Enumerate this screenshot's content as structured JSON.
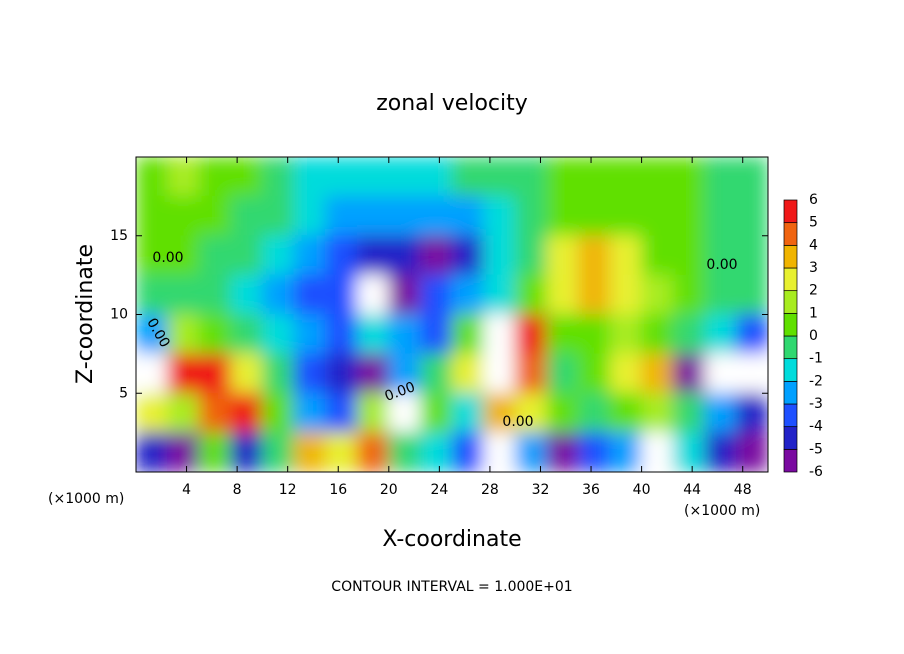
{
  "chart_data": {
    "type": "contour",
    "title": "zonal velocity",
    "x_label": "X-coordinate",
    "y_label": "Z-coordinate",
    "x_unit": "(×1000 m)",
    "y_unit": "(×1000 m)",
    "footer": "CONTOUR INTERVAL = 1.000E+01",
    "xlim": [
      0,
      50
    ],
    "ylim": [
      0,
      20
    ],
    "xticks": [
      4,
      8,
      12,
      16,
      20,
      24,
      28,
      32,
      36,
      40,
      44,
      48
    ],
    "yticks": [
      5,
      10,
      15
    ],
    "x": [
      1.25,
      3.75,
      6.25,
      8.75,
      11.25,
      13.75,
      16.25,
      18.75,
      21.25,
      23.75,
      26.25,
      28.75,
      31.25,
      33.75,
      36.25,
      38.75,
      41.25,
      43.75,
      46.25,
      48.75
    ],
    "y": [
      18.75,
      16.25,
      13.75,
      11.25,
      8.75,
      6.25,
      3.75,
      1.25
    ],
    "z": [
      [
        1,
        1.5,
        1,
        0.5,
        0,
        -1,
        -1.5,
        -1,
        -1.5,
        -1,
        -0.5,
        -0.5,
        0,
        0.5,
        0.5,
        0.5,
        0.5,
        0.5,
        0,
        0
      ],
      [
        1,
        1,
        0.5,
        0,
        -0.5,
        -1,
        -2,
        -2,
        -2.5,
        -2.5,
        -2,
        -1,
        0,
        0.5,
        1,
        0.5,
        0.5,
        0.5,
        0,
        0
      ],
      [
        0.5,
        0.5,
        0,
        0,
        -1,
        -2,
        -3,
        -4,
        -4.5,
        -5,
        -4,
        -1,
        0,
        3,
        4,
        3,
        1,
        0.5,
        0,
        0
      ],
      [
        0,
        0,
        0,
        -1,
        -2,
        -3,
        -3,
        -6.5,
        -5,
        -3,
        -2,
        -1,
        1,
        3,
        4,
        3,
        2,
        1,
        0,
        0
      ],
      [
        -2,
        2,
        1,
        0,
        -1,
        -2,
        -3,
        -1,
        -2,
        -3,
        1,
        7,
        6,
        1,
        1,
        2,
        1,
        0,
        -1,
        -3
      ],
      [
        7,
        6,
        6,
        3,
        0,
        -3,
        -4,
        -5,
        -2,
        0,
        3,
        7,
        5,
        0,
        1,
        3,
        4,
        -5,
        7,
        7
      ],
      [
        3,
        2,
        5,
        6,
        1,
        -2,
        -3,
        2,
        6.5,
        1,
        -1,
        4,
        3,
        1,
        0,
        1,
        2,
        0,
        -2,
        -4
      ],
      [
        -4,
        -5,
        1,
        -4,
        0,
        4,
        3,
        5,
        0,
        -1,
        -3,
        -7,
        -2,
        -5,
        -3,
        -2,
        -7,
        -1,
        -4,
        -6
      ]
    ],
    "colorbar": {
      "levels": [
        -6,
        -5,
        -4,
        -3,
        -2,
        -1,
        0,
        1,
        2,
        3,
        4,
        5,
        6
      ],
      "colors": [
        "#7a0aa0",
        "#2222c8",
        "#1e50ff",
        "#00a0ff",
        "#00dcdc",
        "#30d870",
        "#60e000",
        "#a8ec20",
        "#e8f030",
        "#f0b400",
        "#f06410",
        "#f01818"
      ]
    },
    "contour_labels": [
      "0.00",
      "0.00",
      "0.00",
      "0.00",
      "0.00"
    ]
  }
}
